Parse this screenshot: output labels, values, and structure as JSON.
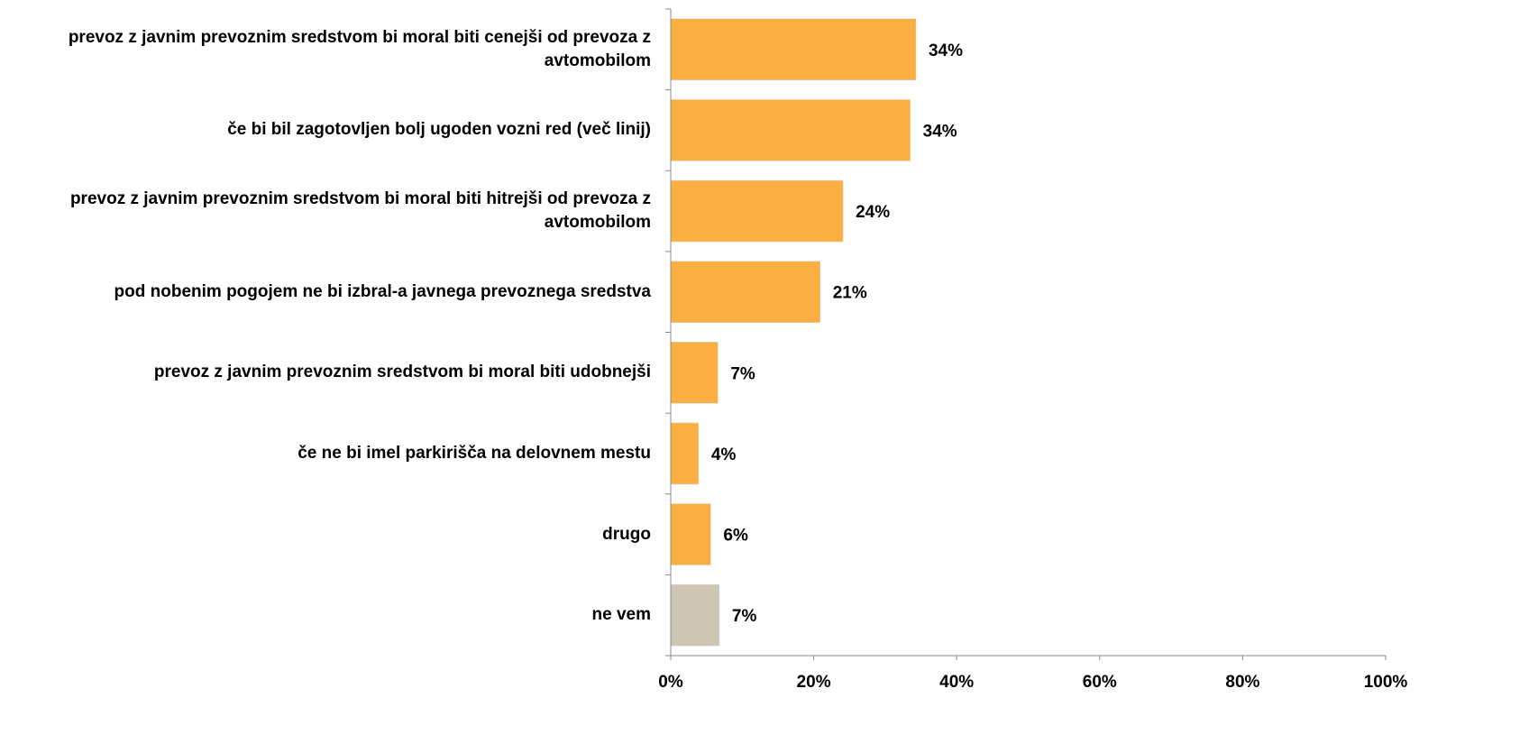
{
  "chart_data": {
    "type": "hbar",
    "categories": [
      "prevoz z javnim prevoznim sredstvom bi moral biti cenejši od prevoza z avtomobilom",
      "če bi bil zagotovljen bolj ugoden vozni red (več linij)",
      "prevoz z javnim prevoznim sredstvom bi moral biti hitrejši od prevoza z avtomobilom",
      "pod nobenim pogojem ne bi izbral-a javnega prevoznega sredstva",
      "prevoz z javnim prevoznim sredstvom bi moral biti udobnejši",
      "če ne bi imel parkirišča na delovnem mestu",
      "drugo",
      "ne vem"
    ],
    "values": [
      34.3,
      33.5,
      24.1,
      20.9,
      6.6,
      3.9,
      5.6,
      6.8
    ],
    "value_labels": [
      "34%",
      "34%",
      "24%",
      "21%",
      "7%",
      "4%",
      "6%",
      "7%"
    ],
    "colors": [
      "#fbae42",
      "#fbae42",
      "#fbae42",
      "#fbae42",
      "#fbae42",
      "#fbae42",
      "#fbae42",
      "#cfc5b3"
    ],
    "xlim": [
      0,
      100
    ],
    "xticks": [
      {
        "value": 0,
        "label": "0%"
      },
      {
        "value": 20,
        "label": "20%"
      },
      {
        "value": 40,
        "label": "40%"
      },
      {
        "value": 60,
        "label": "60%"
      },
      {
        "value": 80,
        "label": "80%"
      },
      {
        "value": 100,
        "label": "100%"
      }
    ]
  }
}
